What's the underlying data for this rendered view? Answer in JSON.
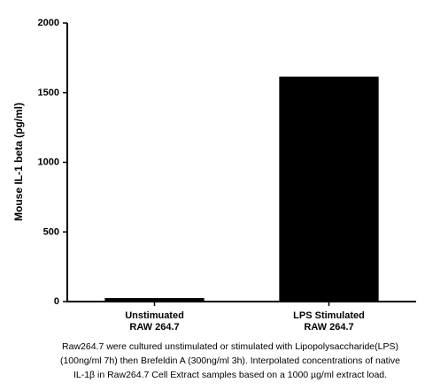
{
  "chart_data": {
    "type": "bar",
    "y_label": "Mouse IL-1 beta  (pg/ml)",
    "categories": [
      "Unstimuated\nRAW 264.7",
      "LPS Stimulated\nRAW 264.7"
    ],
    "values": [
      25,
      1615
    ],
    "color": "#000000",
    "ylim": [
      0,
      2000
    ],
    "yticks": [
      0,
      500,
      1000,
      1500,
      2000
    ],
    "grid": false,
    "caption": "Raw264.7 were cultured unstimulated or stimulated with Lipopolysaccharide(LPS)\n(100ng/ml 7h) then Brefeldin A (300ng/ml 3h). Interpolated concentrations of native\nIL-1β in Raw264.7 Cell Extract samples based on a 1000 µg/ml extract load."
  }
}
